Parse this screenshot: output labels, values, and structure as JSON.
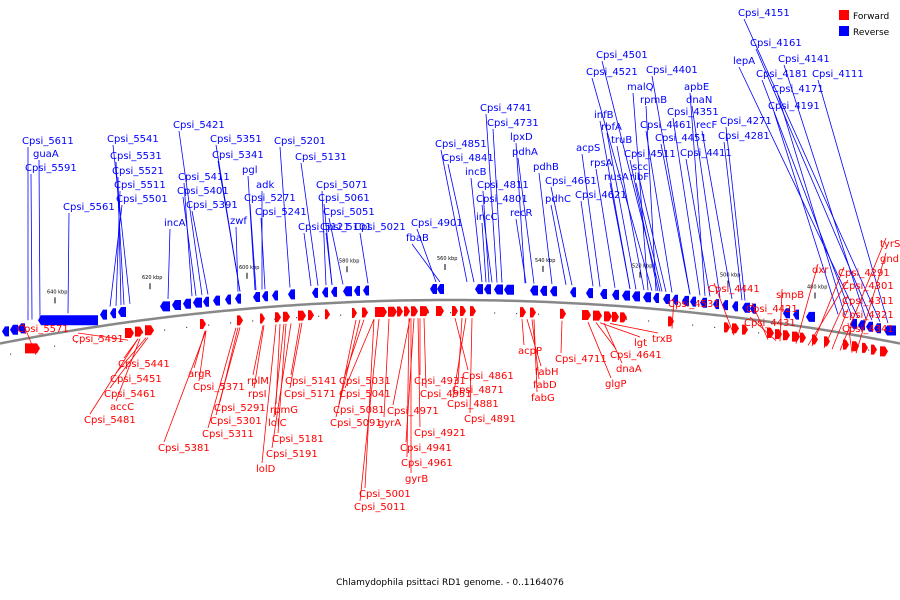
{
  "caption": "Chlamydophila psittaci RD1 genome. - 0..1164076",
  "legend": [
    {
      "label": "Forward",
      "color": "#ff0000"
    },
    {
      "label": "Reverse",
      "color": "#0000ff"
    }
  ],
  "colors": {
    "forward": "#ff0000",
    "reverse": "#0000ff",
    "backbone": "#888888"
  },
  "ticks": [
    "640 kbp",
    "620 kbp",
    "600 kbp",
    "580 kbp",
    "560 kbp",
    "540 kbp",
    "520 kbp",
    "500 kbp",
    "480 kbp"
  ],
  "reverse_labels": [
    "Cpsi_4151",
    "Cpsi_4161",
    "Cpsi_4141",
    "lepA",
    "Cpsi_4181",
    "Cpsi_4111",
    "Cpsi_4171",
    "Cpsi_4191",
    "Cpsi_4501",
    "Cpsi_4521",
    "Cpsi_4401",
    "malQ",
    "apbE",
    "rpmB",
    "dnaN",
    "infB",
    "Cpsi_4351",
    "Cpsi_4271",
    "rbfA",
    "Cpsi_4461",
    "recF",
    "truB",
    "Cpsi_4451",
    "Cpsi_4281",
    "Cpsi_4741",
    "Cpsi_4731",
    "lpxD",
    "acpS",
    "pdhA",
    "Cpsi_4511",
    "Cpsi_4411",
    "Cpsi_5421",
    "Cpsi_5351",
    "Cpsi_5201",
    "Cpsi_5611",
    "Cpsi_5541",
    "pdhB",
    "rpsA",
    "scc",
    "ribF",
    "nusA",
    "Cpsi_4851",
    "Cpsi_5341",
    "Cpsi_5131",
    "guaA",
    "Cpsi_5531",
    "Cpsi_4841",
    "Cpsi_4661",
    "Cpsi_5591",
    "Cpsi_5521",
    "pgl",
    "incB",
    "Cpsi_5411",
    "adk",
    "Cpsi_5071",
    "Cpsi_5511",
    "Cpsi_4811",
    "Cpsi_4621",
    "Cpsi_5401",
    "Cpsi_5271",
    "Cpsi_5061",
    "Cpsi_4801",
    "pdhC",
    "Cpsi_5561",
    "Cpsi_5501",
    "Cpsi_5391",
    "Cpsi_5241",
    "Cpsi_5051",
    "incC",
    "recR",
    "zwf",
    "Cpsi_4901",
    "incA",
    "Cpsi_5121",
    "Cpsi_5101",
    "Cpsi_5021",
    "fbaB"
  ],
  "forward_labels": [
    "tyrS",
    "gnd",
    "Cpsi_4291",
    "dxr",
    "Cpsi_4301",
    "smpB",
    "Cpsi_4441",
    "Cpsi_4311",
    "Cpsi_4531",
    "Cpsi_4421",
    "Cpsi_4321",
    "Cpsi_4431",
    "Cpsi_4341",
    "Cpsi_5571",
    "trxB",
    "Cpsi_5491",
    "lgt",
    "Cpsi_4641",
    "acpP",
    "Cpsi_4711",
    "dnaA",
    "Cpsi_4861",
    "fabH",
    "glgP",
    "Cpsi_5441",
    "argR",
    "rplM",
    "Cpsi_5141",
    "Cpsi_5031",
    "Cpsi_4931",
    "Cpsi_4871",
    "fabD",
    "Cpsi_5451",
    "Cpsi_5371",
    "rpsI",
    "Cpsi_5171",
    "Cpsi_5041",
    "Cpsi_4951",
    "fabG",
    "Cpsi_4881",
    "Cpsi_5461",
    "Cpsi_5291",
    "rpmG",
    "Cpsi_5081",
    "Cpsi_4971",
    "accC",
    "Cpsi_5301",
    "lolC",
    "Cpsi_5091",
    "gyrA",
    "Cpsi_4891",
    "Cpsi_5481",
    "Cpsi_5311",
    "Cpsi_4921",
    "Cpsi_5181",
    "Cpsi_5381",
    "Cpsi_4941",
    "Cpsi_5191",
    "Cpsi_4961",
    "lolD",
    "gyrB",
    "Cpsi_5001",
    "Cpsi_5011"
  ]
}
